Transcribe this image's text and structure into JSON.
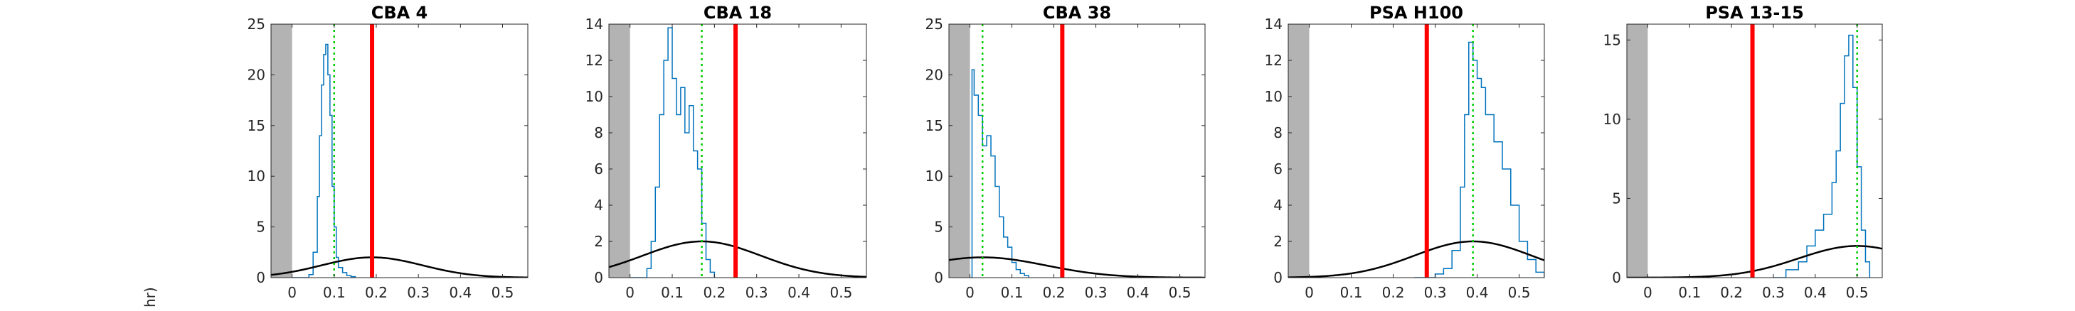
{
  "figure": {
    "ylabel_visible_text": "hr)"
  },
  "colors": {
    "histogram": "#0072BD",
    "threshold_line": "#FF0000",
    "mean_line": "#00CC00",
    "gaussian_curve": "#000000",
    "shaded_region": "#B3B3B3"
  },
  "chart_data": [
    {
      "type": "line",
      "title": "CBA 4",
      "xlim": [
        -0.05,
        0.56
      ],
      "ylim": [
        0,
        25
      ],
      "xticks": [
        "0",
        "0.1",
        "0.2",
        "0.3",
        "0.4",
        "0.5"
      ],
      "yticks": [
        "0",
        "5",
        "10",
        "15",
        "20",
        "25"
      ],
      "shaded_x_range": [
        -0.05,
        0.0
      ],
      "threshold_x": 0.19,
      "mean_x": 0.1,
      "gaussian": {
        "mu": 0.19,
        "sigma": 0.12,
        "peak": 2.0
      },
      "histogram": {
        "x": [
          0.0,
          0.04,
          0.05,
          0.06,
          0.065,
          0.07,
          0.075,
          0.08,
          0.085,
          0.09,
          0.095,
          0.1,
          0.105,
          0.11,
          0.12,
          0.13,
          0.14,
          0.15
        ],
        "y": [
          0,
          0.3,
          2.5,
          8,
          14,
          19,
          22,
          23,
          20,
          16,
          9,
          5,
          2,
          1,
          0.5,
          0.2,
          0.1,
          0
        ]
      }
    },
    {
      "type": "line",
      "title": "CBA 18",
      "xlim": [
        -0.05,
        0.56
      ],
      "ylim": [
        0,
        14
      ],
      "xticks": [
        "0",
        "0.1",
        "0.2",
        "0.3",
        "0.4",
        "0.5"
      ],
      "yticks": [
        "0",
        "2",
        "4",
        "6",
        "8",
        "10",
        "12",
        "14"
      ],
      "shaded_x_range": [
        -0.05,
        0.0
      ],
      "threshold_x": 0.25,
      "mean_x": 0.17,
      "gaussian": {
        "mu": 0.17,
        "sigma": 0.14,
        "peak": 2.0
      },
      "histogram": {
        "x": [
          0.0,
          0.04,
          0.05,
          0.06,
          0.07,
          0.08,
          0.09,
          0.1,
          0.11,
          0.12,
          0.13,
          0.14,
          0.15,
          0.16,
          0.17,
          0.18,
          0.19,
          0.2
        ],
        "y": [
          0,
          0.5,
          2,
          5,
          9,
          12,
          13.8,
          11,
          9,
          10.5,
          8,
          9.5,
          7,
          6,
          3,
          1,
          0.3,
          0
        ]
      }
    },
    {
      "type": "line",
      "title": "CBA 38",
      "xlim": [
        -0.05,
        0.56
      ],
      "ylim": [
        0,
        25
      ],
      "xticks": [
        "0",
        "0.1",
        "0.2",
        "0.3",
        "0.4",
        "0.5"
      ],
      "yticks": [
        "0",
        "5",
        "10",
        "15",
        "20",
        "25"
      ],
      "shaded_x_range": [
        -0.05,
        0.0
      ],
      "threshold_x": 0.22,
      "mean_x": 0.03,
      "gaussian": {
        "mu": 0.03,
        "sigma": 0.15,
        "peak": 2.0
      },
      "histogram": {
        "x": [
          0.0,
          0.005,
          0.01,
          0.02,
          0.03,
          0.04,
          0.05,
          0.06,
          0.07,
          0.08,
          0.09,
          0.1,
          0.11,
          0.12,
          0.13,
          0.14
        ],
        "y": [
          0,
          20.5,
          18,
          16,
          13,
          14,
          12,
          9,
          6,
          4,
          3,
          1.5,
          0.8,
          0.4,
          0.2,
          0
        ]
      }
    },
    {
      "type": "line",
      "title": "PSA H100",
      "xlim": [
        -0.05,
        0.56
      ],
      "ylim": [
        0,
        14
      ],
      "xticks": [
        "0",
        "0.1",
        "0.2",
        "0.3",
        "0.4",
        "0.5"
      ],
      "yticks": [
        "0",
        "2",
        "4",
        "6",
        "8",
        "10",
        "12",
        "14"
      ],
      "shaded_x_range": [
        -0.05,
        0.0
      ],
      "threshold_x": 0.28,
      "mean_x": 0.39,
      "gaussian": {
        "mu": 0.39,
        "sigma": 0.14,
        "peak": 2.0
      },
      "histogram": {
        "x": [
          0.25,
          0.3,
          0.32,
          0.34,
          0.36,
          0.37,
          0.38,
          0.39,
          0.4,
          0.41,
          0.42,
          0.44,
          0.46,
          0.48,
          0.5,
          0.52,
          0.54,
          0.56
        ],
        "y": [
          0,
          0.2,
          0.5,
          1.5,
          5,
          9,
          13,
          12,
          11,
          10.5,
          9,
          7.5,
          6,
          4,
          2,
          1,
          0.3,
          0
        ]
      }
    },
    {
      "type": "line",
      "title": "PSA 13-15",
      "xlim": [
        -0.05,
        0.56
      ],
      "ylim": [
        0,
        16
      ],
      "xticks": [
        "0",
        "0.1",
        "0.2",
        "0.3",
        "0.4",
        "0.5"
      ],
      "yticks": [
        "0",
        "5",
        "10",
        "15"
      ],
      "shaded_x_range": [
        -0.05,
        0.0
      ],
      "threshold_x": 0.25,
      "mean_x": 0.5,
      "gaussian": {
        "mu": 0.5,
        "sigma": 0.14,
        "peak": 2.0
      },
      "histogram": {
        "x": [
          0.3,
          0.33,
          0.36,
          0.38,
          0.4,
          0.42,
          0.44,
          0.45,
          0.46,
          0.47,
          0.48,
          0.49,
          0.5,
          0.51,
          0.52,
          0.53
        ],
        "y": [
          0,
          0.5,
          1,
          2,
          3,
          4,
          6,
          8,
          11,
          14,
          15.3,
          12,
          7,
          3,
          1,
          0
        ]
      }
    }
  ]
}
